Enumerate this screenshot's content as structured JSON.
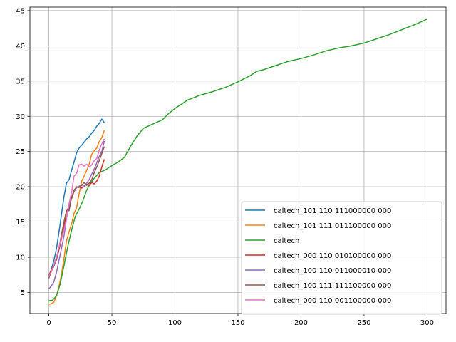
{
  "chart_data": {
    "type": "line",
    "title": "",
    "xlabel": "",
    "ylabel": "",
    "xlim": [
      -15,
      315
    ],
    "ylim": [
      2.0,
      45.5
    ],
    "xticks": [
      0,
      50,
      100,
      150,
      200,
      250,
      300
    ],
    "yticks": [
      5,
      10,
      15,
      20,
      25,
      30,
      35,
      40,
      45
    ],
    "grid": true,
    "legend_position": "lower-right",
    "series": [
      {
        "name": "caltech_101 110 111000000 000",
        "color": "#1f77b4",
        "x": [
          0,
          2,
          4,
          6,
          8,
          10,
          12,
          14,
          16,
          18,
          20,
          22,
          24,
          26,
          28,
          30,
          32,
          34,
          36,
          38,
          40,
          42,
          44
        ],
        "y": [
          7.2,
          8.3,
          9.5,
          11.2,
          13.5,
          16.0,
          18.6,
          20.5,
          21.0,
          22.3,
          23.5,
          24.8,
          25.5,
          25.9,
          26.3,
          26.8,
          27.1,
          27.6,
          28.0,
          28.6,
          29.0,
          29.6,
          29.1
        ]
      },
      {
        "name": "caltech_101 111 011100000 000",
        "color": "#ff7f0e",
        "x": [
          0,
          2,
          4,
          6,
          8,
          10,
          12,
          14,
          16,
          18,
          20,
          22,
          24,
          26,
          28,
          30,
          32,
          34,
          36,
          38,
          40,
          42,
          44
        ],
        "y": [
          3.3,
          3.4,
          3.6,
          4.5,
          5.8,
          7.5,
          9.8,
          12.3,
          13.6,
          14.7,
          16.2,
          17.0,
          19.0,
          20.8,
          21.5,
          22.3,
          23.2,
          24.6,
          25.1,
          25.5,
          26.4,
          27.0,
          28.0
        ]
      },
      {
        "name": "caltech",
        "color": "#2ca02c",
        "x": [
          0,
          3,
          6,
          9,
          12,
          15,
          18,
          21,
          24,
          27,
          30,
          33,
          36,
          40,
          45,
          50,
          55,
          60,
          65,
          70,
          75,
          80,
          85,
          90,
          95,
          100,
          110,
          120,
          130,
          140,
          150,
          160,
          165,
          170,
          180,
          190,
          200,
          210,
          220,
          230,
          240,
          250,
          260,
          270,
          280,
          290,
          300
        ],
        "y": [
          3.8,
          3.9,
          4.5,
          6.2,
          8.8,
          11.5,
          13.8,
          15.8,
          16.8,
          18.0,
          19.5,
          20.5,
          21.2,
          22.0,
          22.4,
          23.0,
          23.5,
          24.2,
          25.8,
          27.2,
          28.3,
          28.7,
          29.1,
          29.5,
          30.4,
          31.1,
          32.3,
          33.0,
          33.5,
          34.1,
          34.9,
          35.8,
          36.4,
          36.6,
          37.2,
          37.8,
          38.2,
          38.7,
          39.3,
          39.7,
          40.0,
          40.4,
          41.0,
          41.6,
          42.3,
          43.0,
          43.8
        ]
      },
      {
        "name": "caltech_000 110 010100000 000",
        "color": "#d62728",
        "x": [
          0,
          2,
          4,
          6,
          8,
          10,
          12,
          14,
          16,
          18,
          20,
          22,
          24,
          26,
          28,
          30,
          32,
          34,
          36,
          38,
          40,
          42,
          44
        ],
        "y": [
          7.4,
          8.2,
          8.8,
          9.6,
          11.0,
          12.6,
          14.2,
          16.5,
          17.2,
          18.3,
          19.3,
          19.9,
          20.0,
          19.8,
          20.1,
          20.4,
          20.2,
          20.6,
          20.4,
          20.8,
          21.5,
          22.8,
          23.9
        ]
      },
      {
        "name": "caltech_100 110 011000010 000",
        "color": "#9467bd",
        "x": [
          0,
          2,
          4,
          6,
          8,
          10,
          12,
          14,
          16,
          18,
          20,
          22,
          24,
          26,
          28,
          30,
          32,
          34,
          36,
          38,
          40,
          42,
          44
        ],
        "y": [
          5.5,
          5.9,
          6.5,
          7.8,
          9.5,
          11.2,
          13.0,
          15.5,
          17.2,
          18.4,
          19.4,
          19.9,
          20.1,
          20.3,
          20.0,
          20.5,
          21.0,
          21.8,
          22.5,
          23.4,
          24.3,
          25.0,
          26.5
        ]
      },
      {
        "name": "caltech_100 111 111100000 000",
        "color": "#8c564b",
        "x": [
          0,
          2,
          4,
          6,
          8,
          10,
          12,
          14,
          16,
          18,
          20,
          22,
          24,
          26,
          28,
          30,
          32,
          34,
          36,
          38,
          40,
          42,
          44
        ],
        "y": [
          7.0,
          8.0,
          8.7,
          9.7,
          11.2,
          13.2,
          15.0,
          16.6,
          16.6,
          18.5,
          19.5,
          20.0,
          19.9,
          20.2,
          20.6,
          20.2,
          20.5,
          21.0,
          22.0,
          22.8,
          23.7,
          24.7,
          25.7
        ]
      },
      {
        "name": "caltech_000 110 001100000 000",
        "color": "#e377c2",
        "x": [
          0,
          2,
          4,
          6,
          8,
          10,
          12,
          14,
          16,
          18,
          20,
          22,
          24,
          26,
          28,
          30,
          32,
          34,
          36,
          38,
          40,
          42,
          44
        ],
        "y": [
          7.2,
          8.0,
          8.9,
          10.0,
          11.4,
          12.8,
          13.8,
          15.5,
          17.6,
          19.2,
          21.5,
          21.9,
          23.1,
          23.2,
          22.9,
          23.2,
          22.8,
          23.1,
          23.7,
          24.0,
          25.2,
          26.1,
          26.8
        ]
      }
    ]
  }
}
